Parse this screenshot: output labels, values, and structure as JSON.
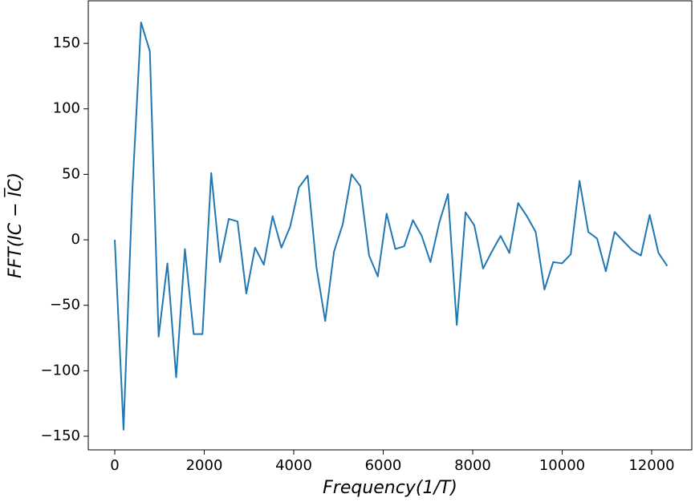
{
  "chart_data": {
    "type": "line",
    "x_label": "Frequency(1/T)",
    "y_label": "FFT(IC − I̅C)",
    "x": [
      0,
      196,
      392,
      588,
      784,
      980,
      1176,
      1372,
      1568,
      1764,
      1960,
      2156,
      2352,
      2548,
      2744,
      2940,
      3136,
      3332,
      3528,
      3724,
      3920,
      4116,
      4312,
      4508,
      4704,
      4900,
      5096,
      5292,
      5488,
      5684,
      5880,
      6076,
      6272,
      6468,
      6664,
      6860,
      7056,
      7252,
      7448,
      7644,
      7840,
      8036,
      8232,
      8428,
      8624,
      8820,
      9016,
      9212,
      9408,
      9604,
      9800,
      9996,
      10192,
      10388,
      10584,
      10780,
      10976,
      11172,
      11368,
      11564,
      11760,
      11956,
      12152,
      12348
    ],
    "series": [
      {
        "color": "#1f77b4",
        "values": [
          0,
          -145,
          37,
          166,
          144,
          -74,
          -18,
          -105,
          -7,
          -72,
          -72,
          51,
          -17,
          16,
          14,
          -41,
          -6,
          -19,
          18,
          -6,
          10,
          40,
          49,
          -21,
          -62,
          -9,
          12,
          50,
          41,
          -12,
          -28,
          20,
          -7,
          -5,
          15,
          3,
          -17,
          13,
          35,
          -65,
          21,
          11,
          -22,
          -9,
          3,
          -10,
          28,
          18,
          6,
          -38,
          -17,
          -18,
          -11,
          45,
          6,
          1,
          -24,
          6,
          -1,
          -8,
          -12,
          19,
          -10,
          -20
        ]
      }
    ],
    "xlim": [
      -592,
      12897
    ],
    "ylim": [
      -160.4,
      182.5
    ],
    "xticks": [
      0,
      2000,
      4000,
      6000,
      8000,
      10000,
      12000
    ],
    "yticks": [
      {
        "value": -150,
        "label": "−150"
      },
      {
        "value": -100,
        "label": "−100"
      },
      {
        "value": -50,
        "label": "−50"
      },
      0,
      50,
      100,
      150
    ],
    "grid": false
  }
}
